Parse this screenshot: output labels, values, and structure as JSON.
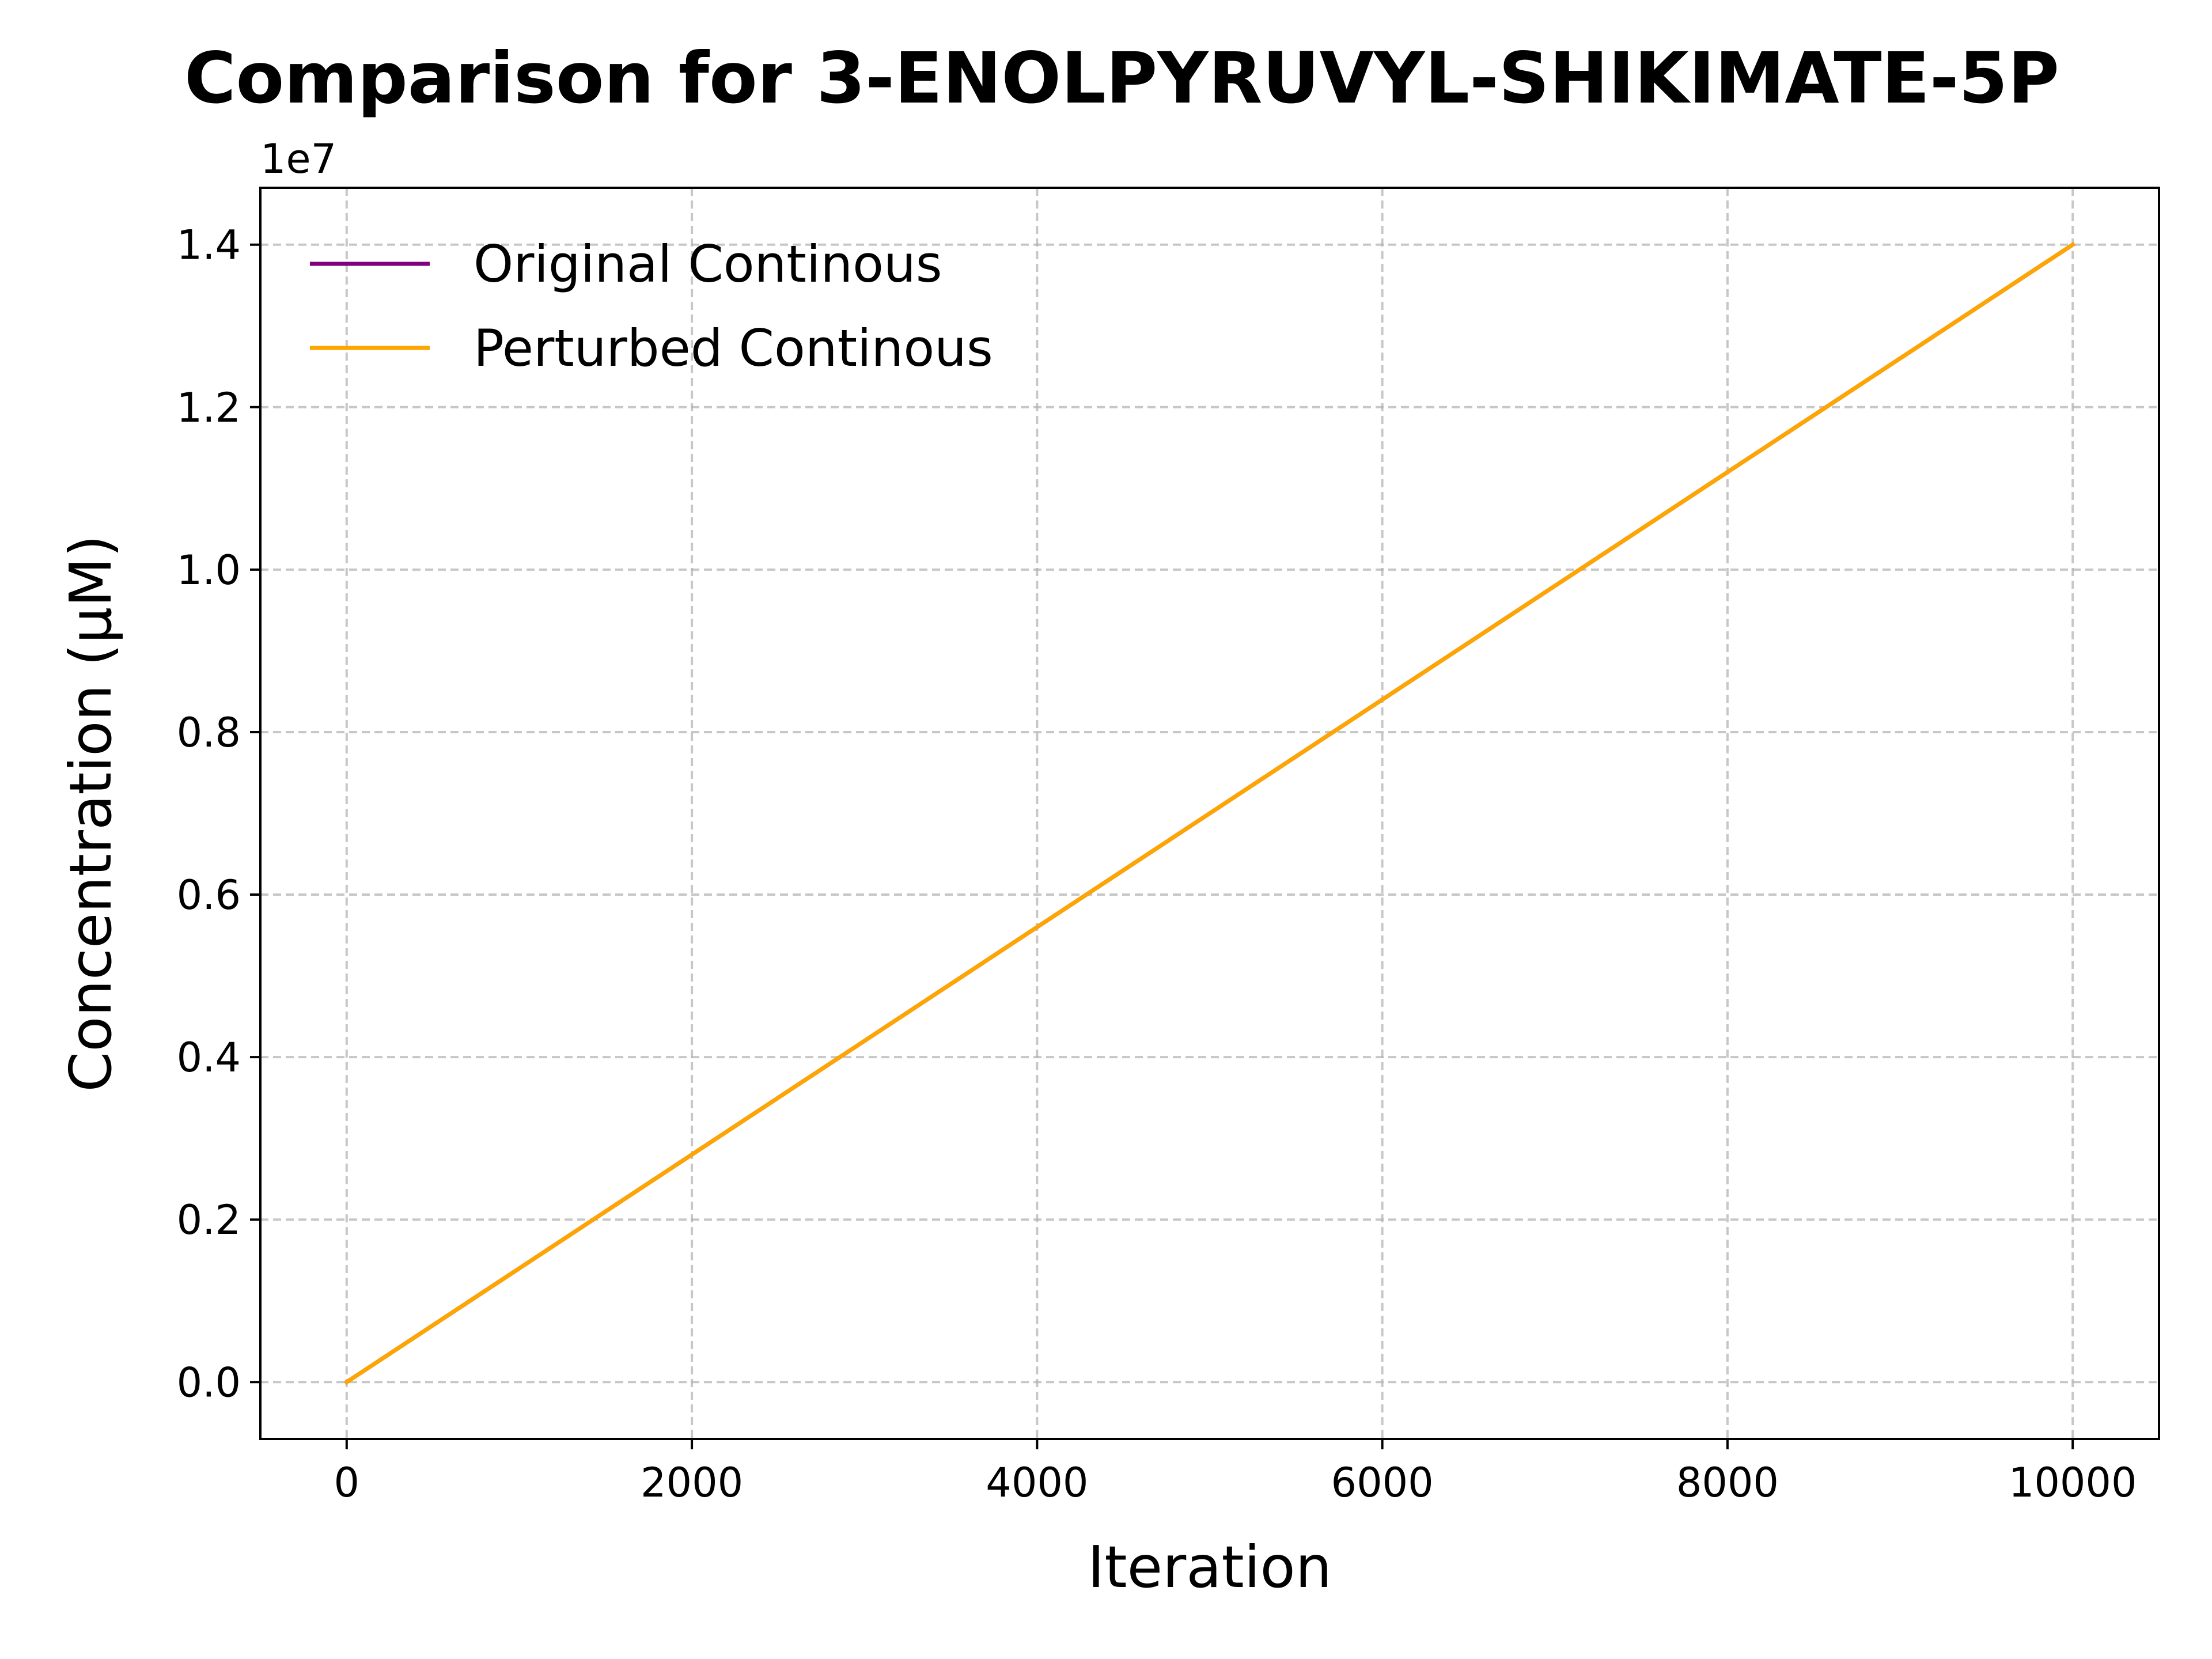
{
  "chart_data": {
    "type": "line",
    "title": "Comparison for 3-ENOLPYRUVYL-SHIKIMATE-5P",
    "xlabel": "Iteration",
    "ylabel": "Concentration (μM)",
    "y_offset_label": "1e7",
    "y_scale_factor": 10000000,
    "xlim": [
      -500,
      10500
    ],
    "ylim": [
      -0.07,
      1.47
    ],
    "x_ticks": [
      0,
      2000,
      4000,
      6000,
      8000,
      10000
    ],
    "x_tick_labels": [
      "0",
      "2000",
      "4000",
      "6000",
      "8000",
      "10000"
    ],
    "y_ticks": [
      0.0,
      0.2,
      0.4,
      0.6,
      0.8,
      1.0,
      1.2,
      1.4
    ],
    "y_tick_labels": [
      "0.0",
      "0.2",
      "0.4",
      "0.6",
      "0.8",
      "1.0",
      "1.2",
      "1.4"
    ],
    "grid": true,
    "legend_position": "upper-left",
    "series": [
      {
        "name": "Original Continous",
        "color": "#800080",
        "x": [
          0,
          10000
        ],
        "y": [
          0.0,
          1.4
        ]
      },
      {
        "name": "Perturbed Continous",
        "color": "#FFA500",
        "x": [
          0,
          10000
        ],
        "y": [
          0.0,
          1.4
        ]
      }
    ]
  }
}
